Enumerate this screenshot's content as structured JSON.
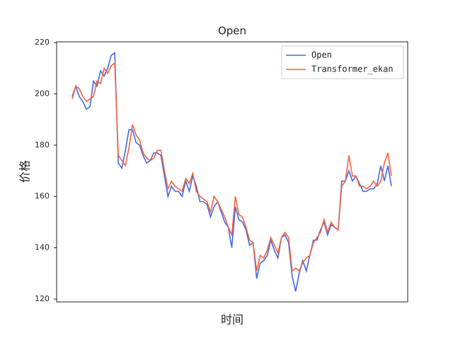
{
  "chart_data": {
    "type": "line",
    "title": "Open",
    "xlabel": "时间",
    "ylabel": "价格",
    "ylim": [
      118.9,
      220.3
    ],
    "yticks": [
      120,
      140,
      160,
      180,
      200,
      220
    ],
    "grid": false,
    "legend": "upper right",
    "series": [
      {
        "name": "Open",
        "color": "#4169e1",
        "values": [
          199,
          203,
          199,
          197,
          194,
          195,
          205,
          203,
          209,
          207,
          210,
          215,
          216,
          173,
          171,
          178,
          186,
          186,
          181,
          180,
          176,
          173,
          174,
          177,
          177,
          176,
          168,
          160,
          164,
          162,
          162,
          160,
          166,
          162,
          168,
          164,
          158,
          158,
          157,
          152,
          156,
          158,
          154,
          150,
          148,
          140,
          156,
          151,
          150,
          147,
          141,
          142,
          128,
          134,
          135,
          137,
          143,
          139,
          136,
          144,
          145,
          142,
          129,
          123,
          130,
          135,
          131,
          137,
          143,
          143,
          147,
          150,
          145,
          149,
          148,
          147,
          166,
          166,
          170,
          166,
          168,
          165,
          162,
          162,
          163,
          163,
          165,
          172,
          166,
          172,
          164
        ]
      },
      {
        "name": "Transformer_ekan",
        "color": "#f4623f",
        "values": [
          198,
          203,
          202,
          199,
          197,
          198,
          199,
          205,
          204,
          210,
          208,
          211,
          212,
          176,
          174,
          172,
          179,
          188,
          184,
          182,
          177,
          175,
          174,
          175,
          178,
          178,
          170,
          163,
          166,
          164,
          163,
          162,
          167,
          165,
          169,
          162,
          160,
          159,
          158,
          154,
          160,
          158,
          155,
          152,
          148,
          145,
          160,
          153,
          152,
          148,
          143,
          142,
          131,
          137,
          136,
          139,
          144,
          141,
          138,
          144,
          146,
          144,
          131,
          132,
          131,
          134,
          136,
          137,
          142,
          144,
          146,
          151,
          146,
          150,
          148,
          147,
          164,
          166,
          176,
          168,
          168,
          164,
          164,
          163,
          164,
          166,
          164,
          166,
          173,
          177,
          168
        ]
      }
    ]
  }
}
